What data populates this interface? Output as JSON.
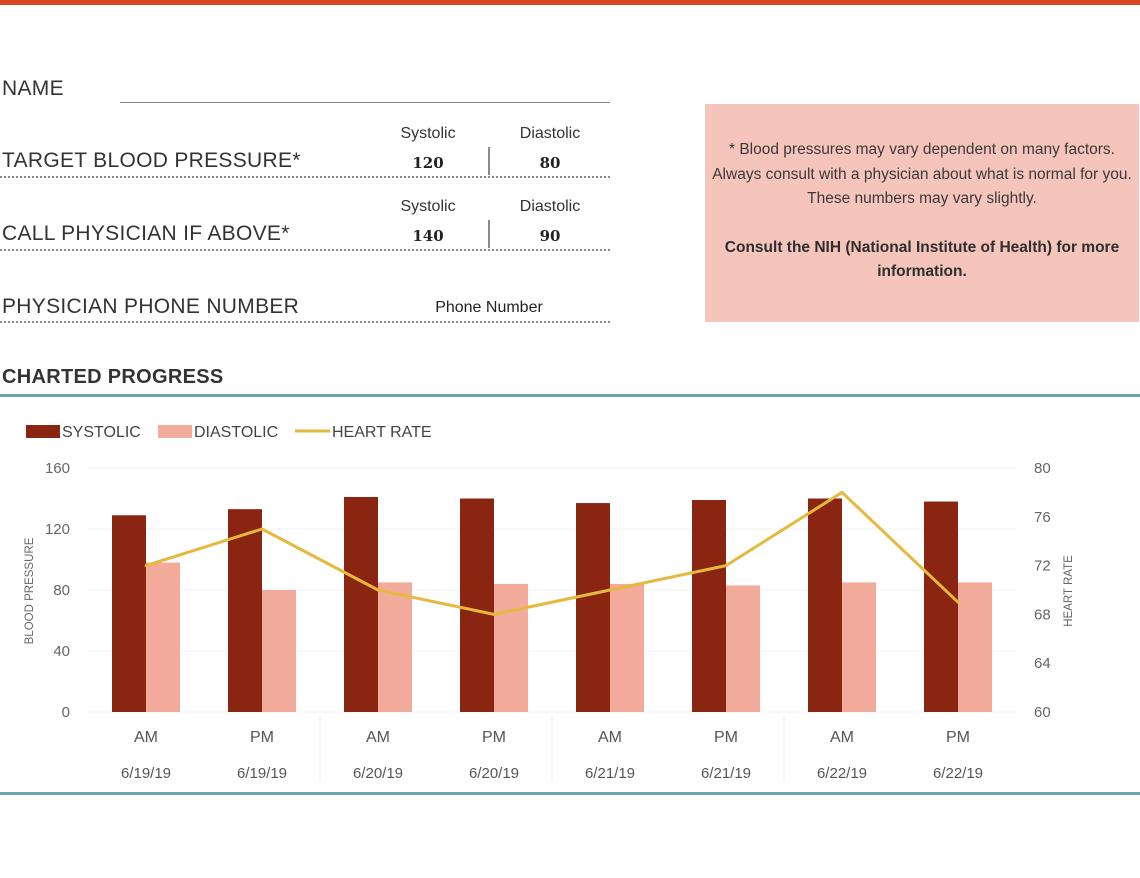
{
  "form": {
    "name_label": "NAME",
    "target_label": "TARGET BLOOD PRESSURE*",
    "call_label": "CALL PHYSICIAN IF ABOVE*",
    "phone_label": "PHYSICIAN PHONE NUMBER",
    "systolic_head": "Systolic",
    "diastolic_head": "Diastolic",
    "target_systolic": "120",
    "target_diastolic": "80",
    "call_systolic": "140",
    "call_diastolic": "90",
    "phone_value": "Phone Number"
  },
  "note": {
    "text": "* Blood pressures may vary dependent on many factors.  Always consult with a physician about what is normal for you. These numbers may vary slightly.",
    "bold": "Consult the NIH (National Institute of Health) for more information."
  },
  "section_title": "CHARTED PROGRESS",
  "colors": {
    "accent_top": "#d9461f",
    "teal": "#6aa9ab",
    "note_bg": "#f5c4ba",
    "systolic": "#8a2512",
    "diastolic": "#f2aa9a",
    "heart_rate": "#e5b83e"
  },
  "chart_data": {
    "type": "bar",
    "legend_position": "top-left",
    "x_period": [
      "AM",
      "PM",
      "AM",
      "PM",
      "AM",
      "PM",
      "AM",
      "PM"
    ],
    "x_dates": [
      "6/19/19",
      "6/19/19",
      "6/20/19",
      "6/20/19",
      "6/21/19",
      "6/21/19",
      "6/22/19",
      "6/22/19"
    ],
    "ylabel": "BLOOD PRESSURE",
    "y2label": "HEART RATE",
    "ylim": [
      0,
      160
    ],
    "y_ticks": [
      "0",
      "40",
      "80",
      "120",
      "160"
    ],
    "y2lim": [
      60,
      80
    ],
    "y2_ticks": [
      "60",
      "64",
      "68",
      "72",
      "76",
      "80"
    ],
    "series": [
      {
        "name": "SYSTOLIC",
        "type": "bar",
        "axis": "left",
        "values": [
          129,
          133,
          141,
          140,
          137,
          139,
          140,
          138
        ]
      },
      {
        "name": "DIASTOLIC",
        "type": "bar",
        "axis": "left",
        "values": [
          98,
          80,
          85,
          84,
          84,
          83,
          85,
          85
        ]
      },
      {
        "name": "HEART RATE",
        "type": "line",
        "axis": "right",
        "values": [
          72,
          75,
          70,
          68,
          70,
          72,
          78,
          69
        ]
      }
    ]
  }
}
